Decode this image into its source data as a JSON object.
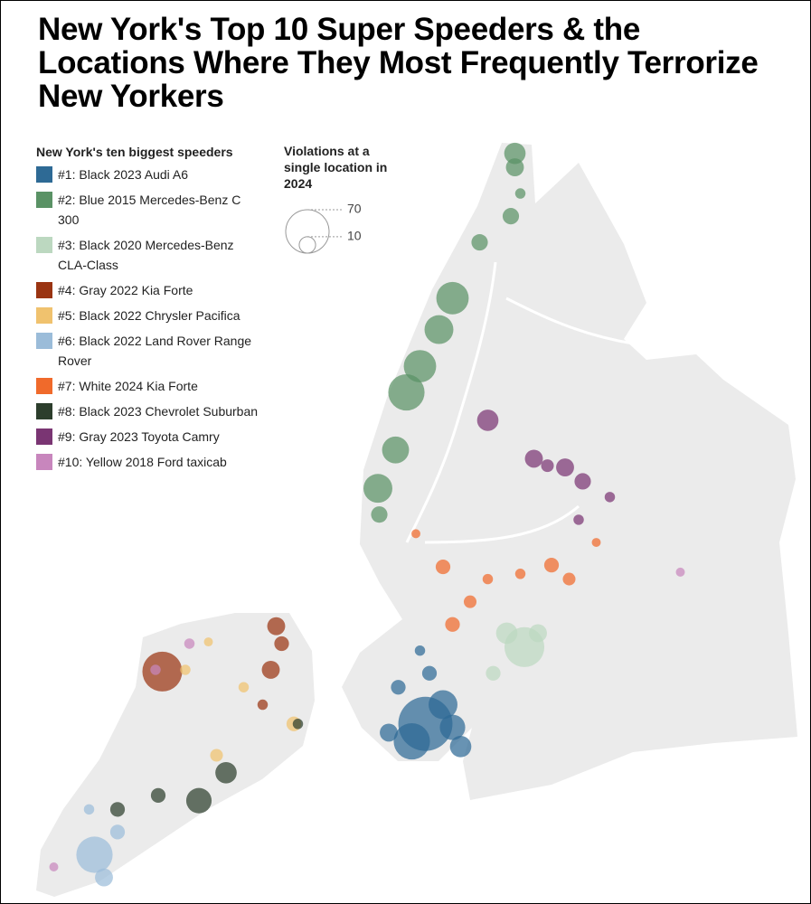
{
  "chart_data": {
    "type": "bubble-map",
    "title": "New York's Top 10 Super Speeders & the Locations Where They Most Frequently Terrorize New Yorkers",
    "legend_title": "New York's ten biggest speeders",
    "size_legend": {
      "title": "Violations at a single location in 2024",
      "values": [
        70,
        10
      ]
    },
    "series": [
      {
        "name": "#1: Black 2023 Audi A6",
        "color": "#2e6a95",
        "points": [
          {
            "lon": -73.973,
            "lat": 40.588,
            "violations": 109
          },
          {
            "lon": -73.983,
            "lat": 40.578,
            "violations": 49
          },
          {
            "lon": -73.96,
            "lat": 40.599,
            "violations": 31
          },
          {
            "lon": -73.947,
            "lat": 40.575,
            "violations": 17
          },
          {
            "lon": -73.993,
            "lat": 40.609,
            "violations": 8
          },
          {
            "lon": -73.97,
            "lat": 40.617,
            "violations": 8
          },
          {
            "lon": -73.953,
            "lat": 40.586,
            "violations": 24
          },
          {
            "lon": -74.0,
            "lat": 40.583,
            "violations": 12
          },
          {
            "lon": -73.977,
            "lat": 40.63,
            "violations": 4
          }
        ]
      },
      {
        "name": "#2: Blue 2015 Mercedes-Benz C 300",
        "color": "#5a9265",
        "points": [
          {
            "lon": -73.907,
            "lat": 40.915,
            "violations": 17
          },
          {
            "lon": -73.907,
            "lat": 40.907,
            "violations": 12
          },
          {
            "lon": -73.953,
            "lat": 40.832,
            "violations": 39
          },
          {
            "lon": -73.963,
            "lat": 40.814,
            "violations": 31
          },
          {
            "lon": -73.977,
            "lat": 40.793,
            "violations": 39
          },
          {
            "lon": -73.987,
            "lat": 40.778,
            "violations": 49
          },
          {
            "lon": -73.995,
            "lat": 40.745,
            "violations": 27
          },
          {
            "lon": -74.008,
            "lat": 40.723,
            "violations": 31
          },
          {
            "lon": -74.007,
            "lat": 40.708,
            "violations": 10
          },
          {
            "lon": -73.933,
            "lat": 40.864,
            "violations": 10
          },
          {
            "lon": -73.91,
            "lat": 40.879,
            "violations": 10
          },
          {
            "lon": -73.903,
            "lat": 40.892,
            "violations": 4
          }
        ]
      },
      {
        "name": "#3: Black 2020 Mercedes-Benz CLA-Class",
        "color": "#bcd8c0",
        "points": [
          {
            "lon": -73.9,
            "lat": 40.632,
            "violations": 59
          },
          {
            "lon": -73.913,
            "lat": 40.64,
            "violations": 17
          },
          {
            "lon": -73.89,
            "lat": 40.64,
            "violations": 12
          },
          {
            "lon": -73.923,
            "lat": 40.617,
            "violations": 8
          }
        ]
      },
      {
        "name": "#4: Gray 2022 Kia Forte",
        "color": "#9a3412",
        "points": [
          {
            "lon": -74.167,
            "lat": 40.618,
            "violations": 59
          },
          {
            "lon": -74.083,
            "lat": 40.644,
            "violations": 12
          },
          {
            "lon": -74.087,
            "lat": 40.619,
            "violations": 12
          },
          {
            "lon": -74.079,
            "lat": 40.634,
            "violations": 8
          },
          {
            "lon": -74.093,
            "lat": 40.599,
            "violations": 4
          }
        ]
      },
      {
        "name": "#5: Black 2022 Chrysler Pacifica",
        "color": "#f0c26e",
        "points": [
          {
            "lon": -74.07,
            "lat": 40.588,
            "violations": 8
          },
          {
            "lon": -74.107,
            "lat": 40.609,
            "violations": 4
          },
          {
            "lon": -74.127,
            "lat": 40.57,
            "violations": 6
          },
          {
            "lon": -74.15,
            "lat": 40.619,
            "violations": 4
          },
          {
            "lon": -74.133,
            "lat": 40.635,
            "violations": 3
          }
        ]
      },
      {
        "name": "#6: Black 2022 Land Rover Range Rover",
        "color": "#9bbcd9",
        "points": [
          {
            "lon": -74.217,
            "lat": 40.513,
            "violations": 49
          },
          {
            "lon": -74.221,
            "lat": 40.539,
            "violations": 4
          },
          {
            "lon": -74.2,
            "lat": 40.526,
            "violations": 8
          },
          {
            "lon": -74.21,
            "lat": 40.5,
            "violations": 12
          }
        ]
      },
      {
        "name": "#7: White 2024 Kia Forte",
        "color": "#f06a2b",
        "points": [
          {
            "lon": -73.88,
            "lat": 40.679,
            "violations": 8
          },
          {
            "lon": -73.96,
            "lat": 40.678,
            "violations": 8
          },
          {
            "lon": -73.903,
            "lat": 40.674,
            "violations": 4
          },
          {
            "lon": -73.927,
            "lat": 40.671,
            "violations": 4
          },
          {
            "lon": -73.953,
            "lat": 40.645,
            "violations": 8
          },
          {
            "lon": -73.867,
            "lat": 40.671,
            "violations": 6
          },
          {
            "lon": -73.94,
            "lat": 40.658,
            "violations": 6
          },
          {
            "lon": -73.98,
            "lat": 40.697,
            "violations": 3
          },
          {
            "lon": -73.847,
            "lat": 40.692,
            "violations": 3
          }
        ]
      },
      {
        "name": "#8: Black 2023 Chevrolet Suburban",
        "color": "#2c3e2c",
        "points": [
          {
            "lon": -74.14,
            "lat": 40.544,
            "violations": 24
          },
          {
            "lon": -74.12,
            "lat": 40.56,
            "violations": 17
          },
          {
            "lon": -74.17,
            "lat": 40.547,
            "violations": 8
          },
          {
            "lon": -74.2,
            "lat": 40.539,
            "violations": 8
          },
          {
            "lon": -74.067,
            "lat": 40.588,
            "violations": 4
          }
        ]
      },
      {
        "name": "#9: Gray 2023 Toyota Camry",
        "color": "#7a3573",
        "points": [
          {
            "lon": -73.927,
            "lat": 40.762,
            "violations": 17
          },
          {
            "lon": -73.893,
            "lat": 40.74,
            "violations": 12
          },
          {
            "lon": -73.87,
            "lat": 40.735,
            "violations": 12
          },
          {
            "lon": -73.857,
            "lat": 40.727,
            "violations": 10
          },
          {
            "lon": -73.883,
            "lat": 40.736,
            "violations": 6
          },
          {
            "lon": -73.86,
            "lat": 40.705,
            "violations": 4
          },
          {
            "lon": -73.837,
            "lat": 40.718,
            "violations": 4
          }
        ]
      },
      {
        "name": "#10: Yellow 2018 Ford taxicab",
        "color": "#c886bd",
        "points": [
          {
            "lon": -74.172,
            "lat": 40.619,
            "violations": 4
          },
          {
            "lon": -74.147,
            "lat": 40.634,
            "violations": 4
          },
          {
            "lon": -74.247,
            "lat": 40.506,
            "violations": 3
          },
          {
            "lon": -73.785,
            "lat": 40.675,
            "violations": 3
          }
        ]
      }
    ]
  }
}
